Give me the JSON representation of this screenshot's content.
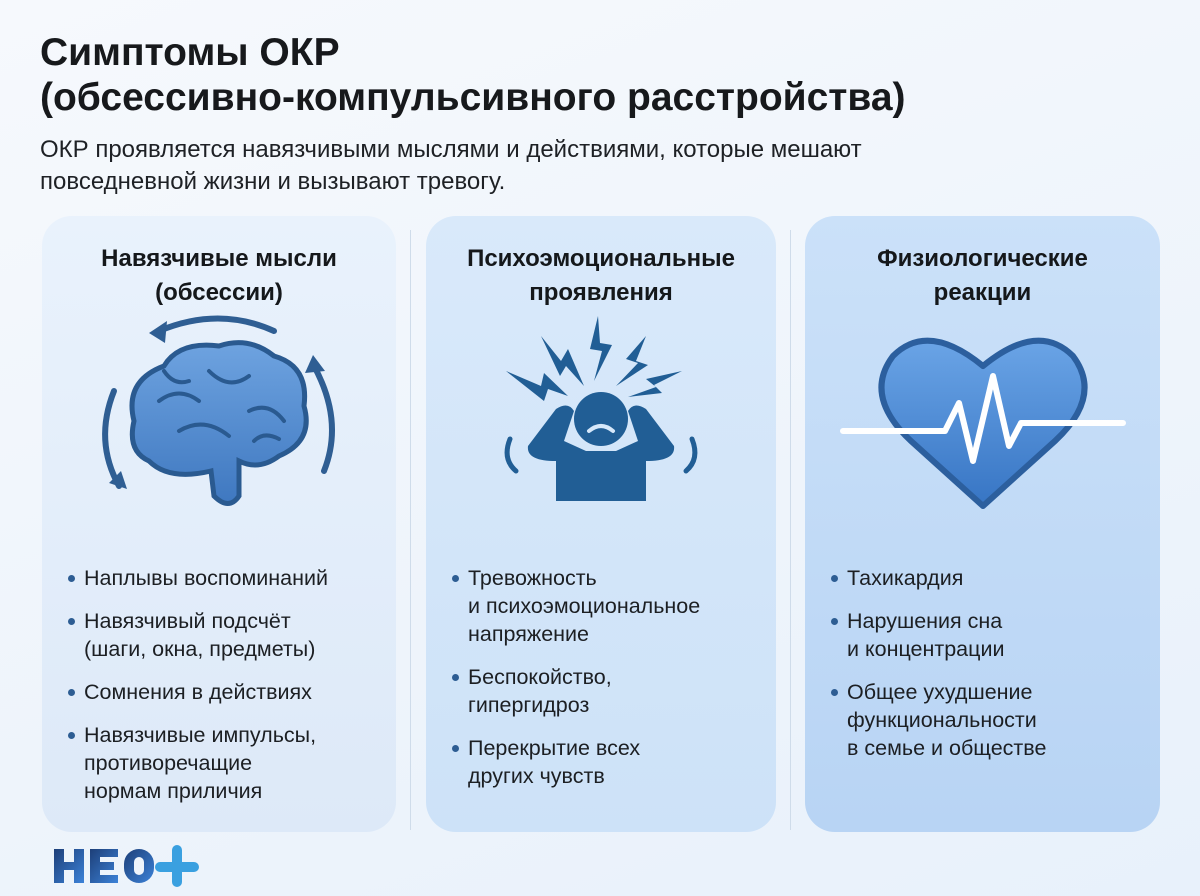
{
  "header": {
    "title_line1": "Симптомы ОКР",
    "title_line2": "(обсессивно-компульсивного расстройства)",
    "subtitle_line1": "ОКР проявляется навязчивыми мыслями и действиями, которые мешают",
    "subtitle_line2": "повседневной жизни и вызывают тревогу."
  },
  "cards": [
    {
      "heading_line1": "Навязчивые мысли",
      "heading_line2": "(обсессии)",
      "icon": "brain-with-cycle-arrows-icon",
      "items": [
        [
          "Наплывы воспоминаний"
        ],
        [
          "Навязчивый подсчёт",
          "(шаги, окна, предметы)"
        ],
        [
          "Сомнения в действиях"
        ],
        [
          "Навязчивые импульсы,",
          "противоречащие",
          "нормам приличия"
        ]
      ]
    },
    {
      "heading_line1": "Психоэмоциональные",
      "heading_line2": "проявления",
      "icon": "stressed-person-icon",
      "items": [
        [
          "Тревожность",
          "и психоэмоциональное",
          "напряжение"
        ],
        [
          "Беспокойство,",
          "гипергидроз"
        ],
        [
          "Перекрытие всех",
          "других чувств"
        ]
      ]
    },
    {
      "heading_line1": "Физиологические",
      "heading_line2": "реакции",
      "icon": "heart-pulse-icon",
      "items": [
        [
          "Тахикардия"
        ],
        [
          "Нарушения сна",
          "и концентрации"
        ],
        [
          "Общее ухудшение",
          "функциональности",
          "в семье и обществе"
        ]
      ]
    }
  ],
  "logo": {
    "text": "НЕО+"
  },
  "colors": {
    "icon": "#2f66a3",
    "accent": "#3b7fd0",
    "logo_plus": "#3aa0e0"
  }
}
